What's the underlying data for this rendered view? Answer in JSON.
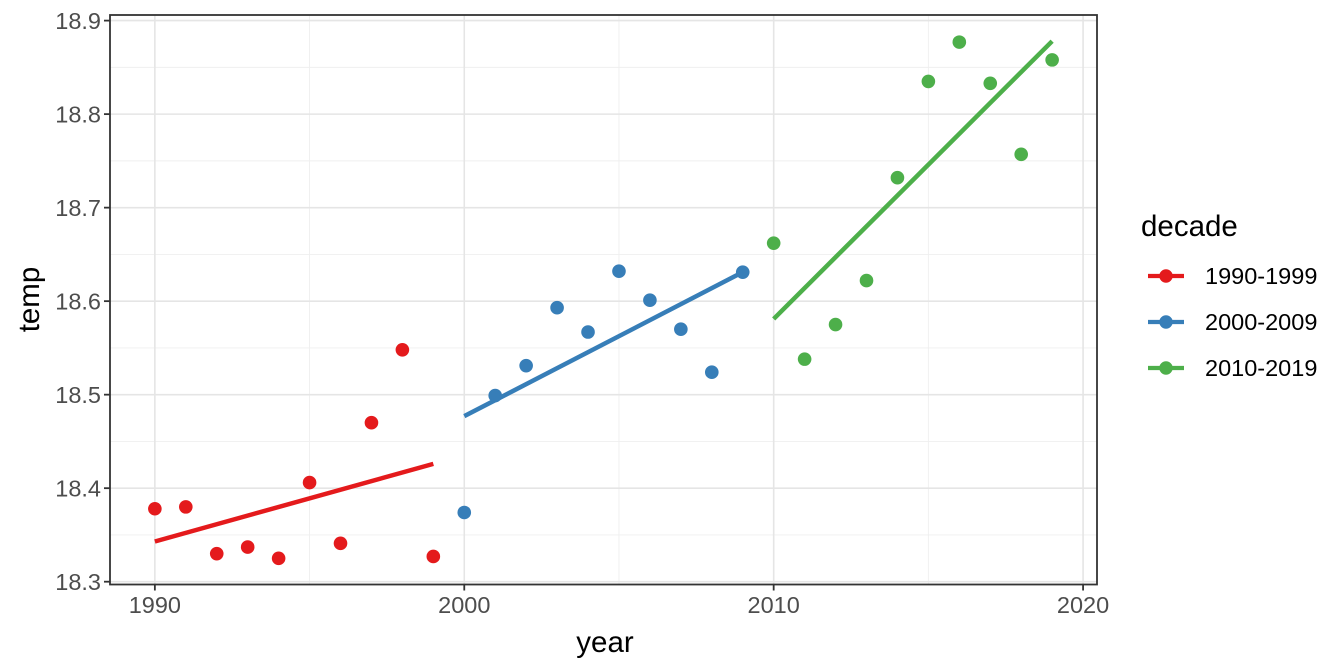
{
  "figure": {
    "background": "#FFFFFF"
  },
  "chart_data": {
    "type": "scatter",
    "xlabel": "year",
    "ylabel": "temp",
    "legend_title": "decade",
    "legend_position": "right",
    "grid": true,
    "x_domain": [
      1988.55,
      2020.45
    ],
    "y_domain": [
      18.297,
      18.906
    ],
    "x_ticks": {
      "major": [
        1990,
        2000,
        2010,
        2020
      ],
      "minor": [
        1995,
        2005,
        2015
      ],
      "labels": [
        "1990",
        "2000",
        "2010",
        "2020"
      ]
    },
    "y_ticks": {
      "major": [
        18.3,
        18.4,
        18.5,
        18.6,
        18.7,
        18.8,
        18.9
      ],
      "minor": [
        18.35,
        18.45,
        18.55,
        18.65,
        18.75,
        18.85
      ],
      "labels": [
        "18.3",
        "18.4",
        "18.5",
        "18.6",
        "18.7",
        "18.8",
        "18.9"
      ]
    },
    "series": [
      {
        "name": "1990-1999",
        "color": "#E41A1C",
        "years": [
          1990,
          1991,
          1992,
          1993,
          1994,
          1995,
          1996,
          1997,
          1998,
          1999
        ],
        "temps": [
          18.378,
          18.38,
          18.33,
          18.337,
          18.325,
          18.406,
          18.341,
          18.47,
          18.548,
          18.327
        ],
        "trend": {
          "x": [
            1990,
            1999
          ],
          "y": [
            18.343,
            18.426
          ]
        }
      },
      {
        "name": "2000-2009",
        "color": "#377EB8",
        "years": [
          2000,
          2001,
          2002,
          2003,
          2004,
          2005,
          2006,
          2007,
          2008,
          2009
        ],
        "temps": [
          18.374,
          18.499,
          18.531,
          18.593,
          18.567,
          18.632,
          18.601,
          18.57,
          18.524,
          18.631
        ],
        "trend": {
          "x": [
            2000,
            2009
          ],
          "y": [
            18.477,
            18.631
          ]
        }
      },
      {
        "name": "2010-2019",
        "color": "#4DAF4A",
        "years": [
          2010,
          2011,
          2012,
          2013,
          2014,
          2015,
          2016,
          2017,
          2018,
          2019
        ],
        "temps": [
          18.662,
          18.538,
          18.575,
          18.622,
          18.732,
          18.835,
          18.877,
          18.833,
          18.757,
          18.858
        ],
        "trend": {
          "x": [
            2010,
            2019
          ],
          "y": [
            18.581,
            18.878
          ]
        }
      }
    ],
    "style": {
      "point_radius": 6.8,
      "trend_width": 4.5,
      "panel_border": "#333333",
      "grid_major": "#E5E5E5",
      "grid_minor": "#EFEFEF",
      "tick_color": "#333333",
      "tick_label_color": "#4D4D4D",
      "title_color": "#000000"
    }
  }
}
